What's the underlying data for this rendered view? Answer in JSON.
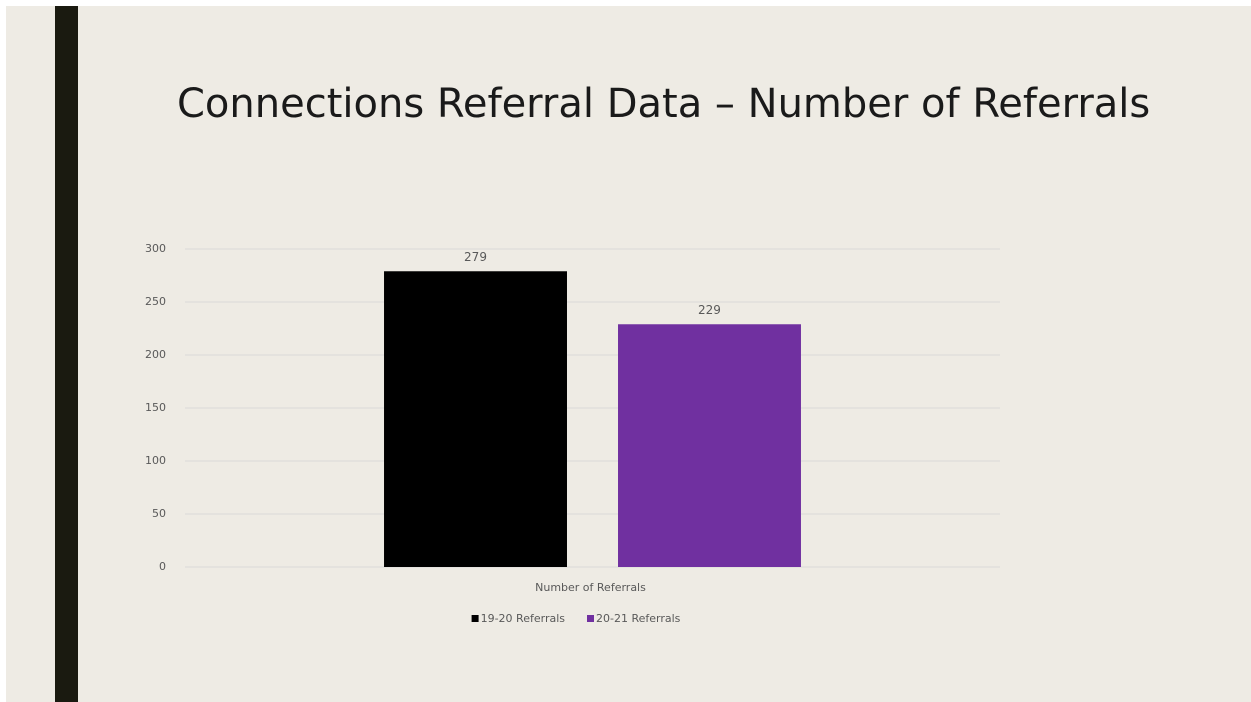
{
  "chart_data": {
    "type": "bar",
    "title": "Connections Referral Data – Number of Referrals",
    "categories": [
      "Number of Referrals"
    ],
    "series": [
      {
        "name": "19-20 Referrals",
        "color": "#000000",
        "values": [
          279
        ]
      },
      {
        "name": "20-21 Referrals",
        "color": "#7030a0",
        "values": [
          229
        ]
      }
    ],
    "ylim": [
      0,
      300
    ],
    "yticks": [
      0,
      50,
      100,
      150,
      200,
      250,
      300
    ],
    "grid": true,
    "legend": "bottom"
  }
}
